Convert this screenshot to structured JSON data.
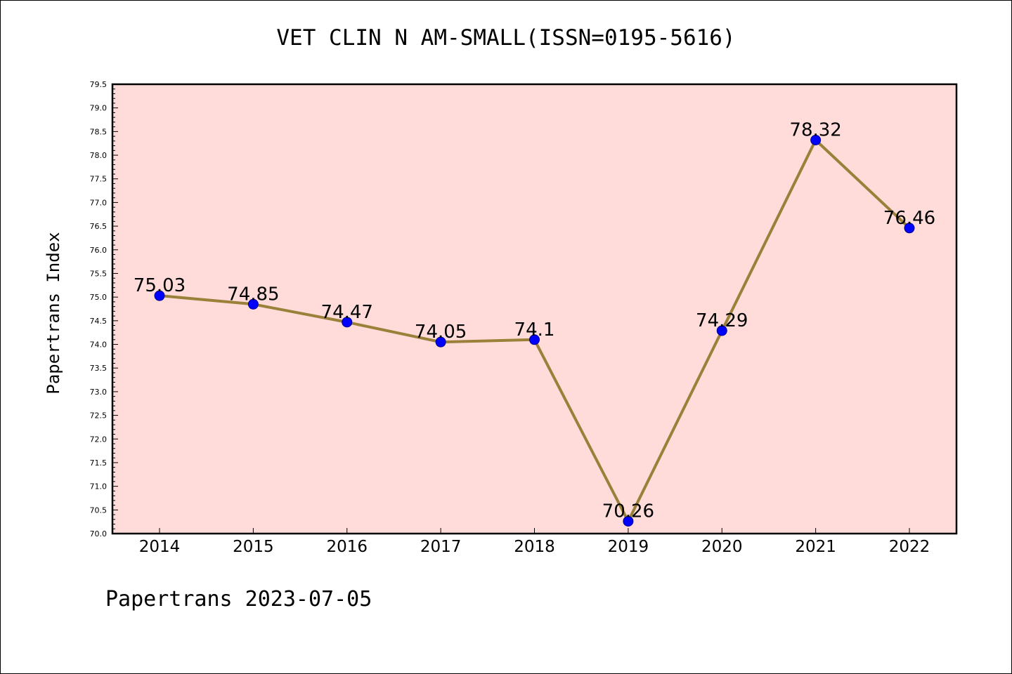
{
  "chart_data": {
    "type": "line",
    "title": "VET CLIN N AM-SMALL(ISSN=0195-5616)",
    "xlabel": "",
    "ylabel": "Papertrans Index",
    "categories": [
      "2014",
      "2015",
      "2016",
      "2017",
      "2018",
      "2019",
      "2020",
      "2021",
      "2022"
    ],
    "values": [
      75.03,
      74.85,
      74.47,
      74.05,
      74.1,
      70.26,
      74.29,
      78.32,
      76.46
    ],
    "data_labels": [
      "75.03",
      "74.85",
      "74.47",
      "74.05",
      "74.1",
      "70.26",
      "74.29",
      "78.32",
      "76.46"
    ],
    "ylim": [
      70.0,
      79.5
    ],
    "yticks": [
      "70.0",
      "70.5",
      "71.0",
      "71.5",
      "72.0",
      "72.5",
      "73.0",
      "73.5",
      "74.0",
      "74.5",
      "75.0",
      "75.5",
      "76.0",
      "76.5",
      "77.0",
      "77.5",
      "78.0",
      "78.5",
      "79.0",
      "79.5"
    ],
    "grid": false,
    "colors": {
      "plot_background": "#ffdcda",
      "line": "#9b8039",
      "marker": "#0000ff"
    }
  },
  "footer": "Papertrans 2023-07-05"
}
